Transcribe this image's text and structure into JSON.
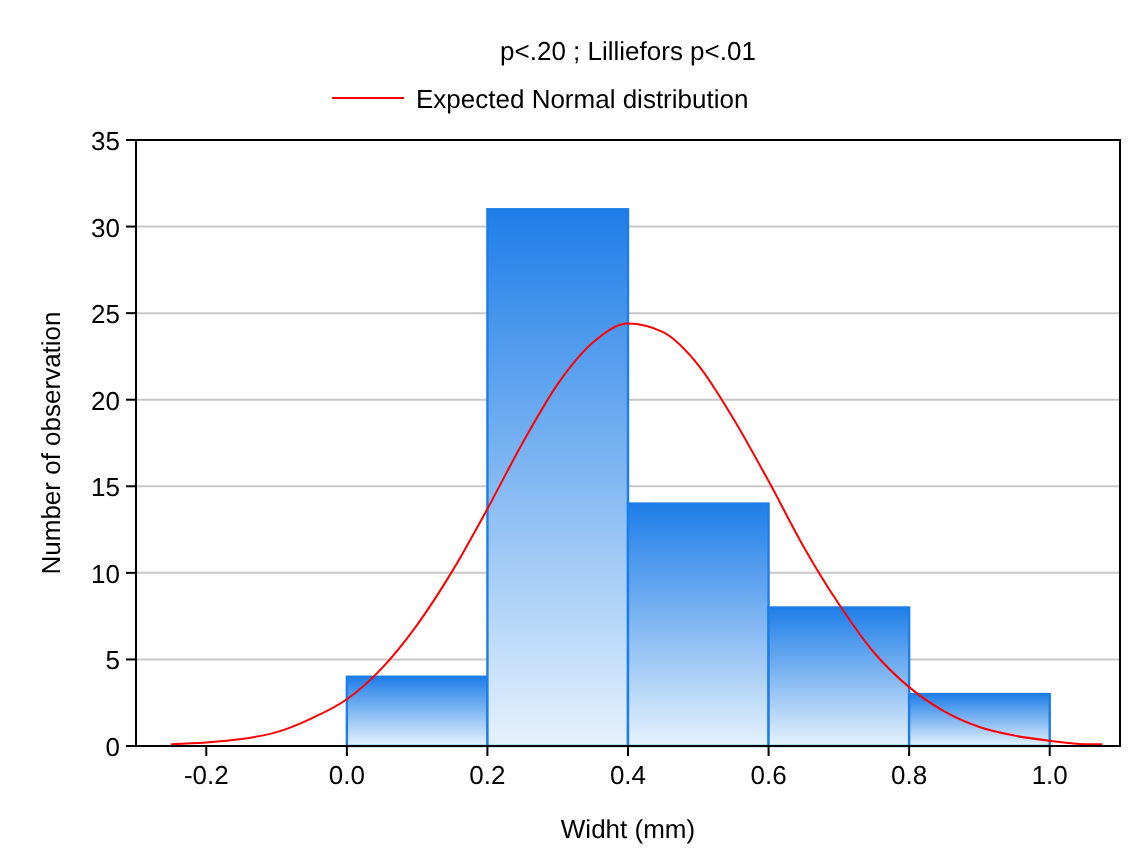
{
  "chart_data": {
    "type": "histogram",
    "title": "p<.20 ; Lilliefors p<.01",
    "xlabel": "Widht (mm)",
    "ylabel": "Number of observation",
    "bins": [
      0,
      0.2,
      0.4,
      0.6,
      0.8,
      1.0
    ],
    "values": [
      4,
      31,
      14,
      8,
      3
    ],
    "color": "#1e7ee8",
    "xlim": [
      -0.3,
      1.1
    ],
    "xticks": [
      -0.2,
      {
        "value": 0,
        "label": "0.0"
      },
      0.2,
      0.4,
      0.6,
      0.8,
      {
        "value": 1,
        "label": "1.0"
      }
    ],
    "ylim": [
      0,
      35
    ],
    "yticks": [
      0,
      5,
      10,
      15,
      20,
      25,
      30,
      35
    ],
    "grid": "y",
    "legend": "top",
    "series": [
      {
        "name": "Expected Normal distribution",
        "type": "line",
        "color": "#ff0000",
        "x": [
          -0.25,
          -0.2,
          -0.15,
          -0.1,
          -0.05,
          0,
          0.05,
          0.1,
          0.15,
          0.2,
          0.25,
          0.3,
          0.35,
          0.4,
          0.45,
          0.5,
          0.55,
          0.6,
          0.65,
          0.7,
          0.75,
          0.8,
          0.85,
          0.9,
          0.95,
          1.0,
          1.05,
          1.075
        ],
        "values": [
          0.1,
          0.2,
          0.4,
          0.8,
          1.6,
          2.7,
          4.5,
          7.0,
          10.1,
          13.7,
          17.5,
          20.9,
          23.3,
          24.4,
          23.9,
          22.0,
          18.9,
          15.3,
          11.5,
          8.2,
          5.4,
          3.4,
          2.0,
          1.1,
          0.6,
          0.3,
          0.1,
          0.1
        ]
      }
    ]
  }
}
